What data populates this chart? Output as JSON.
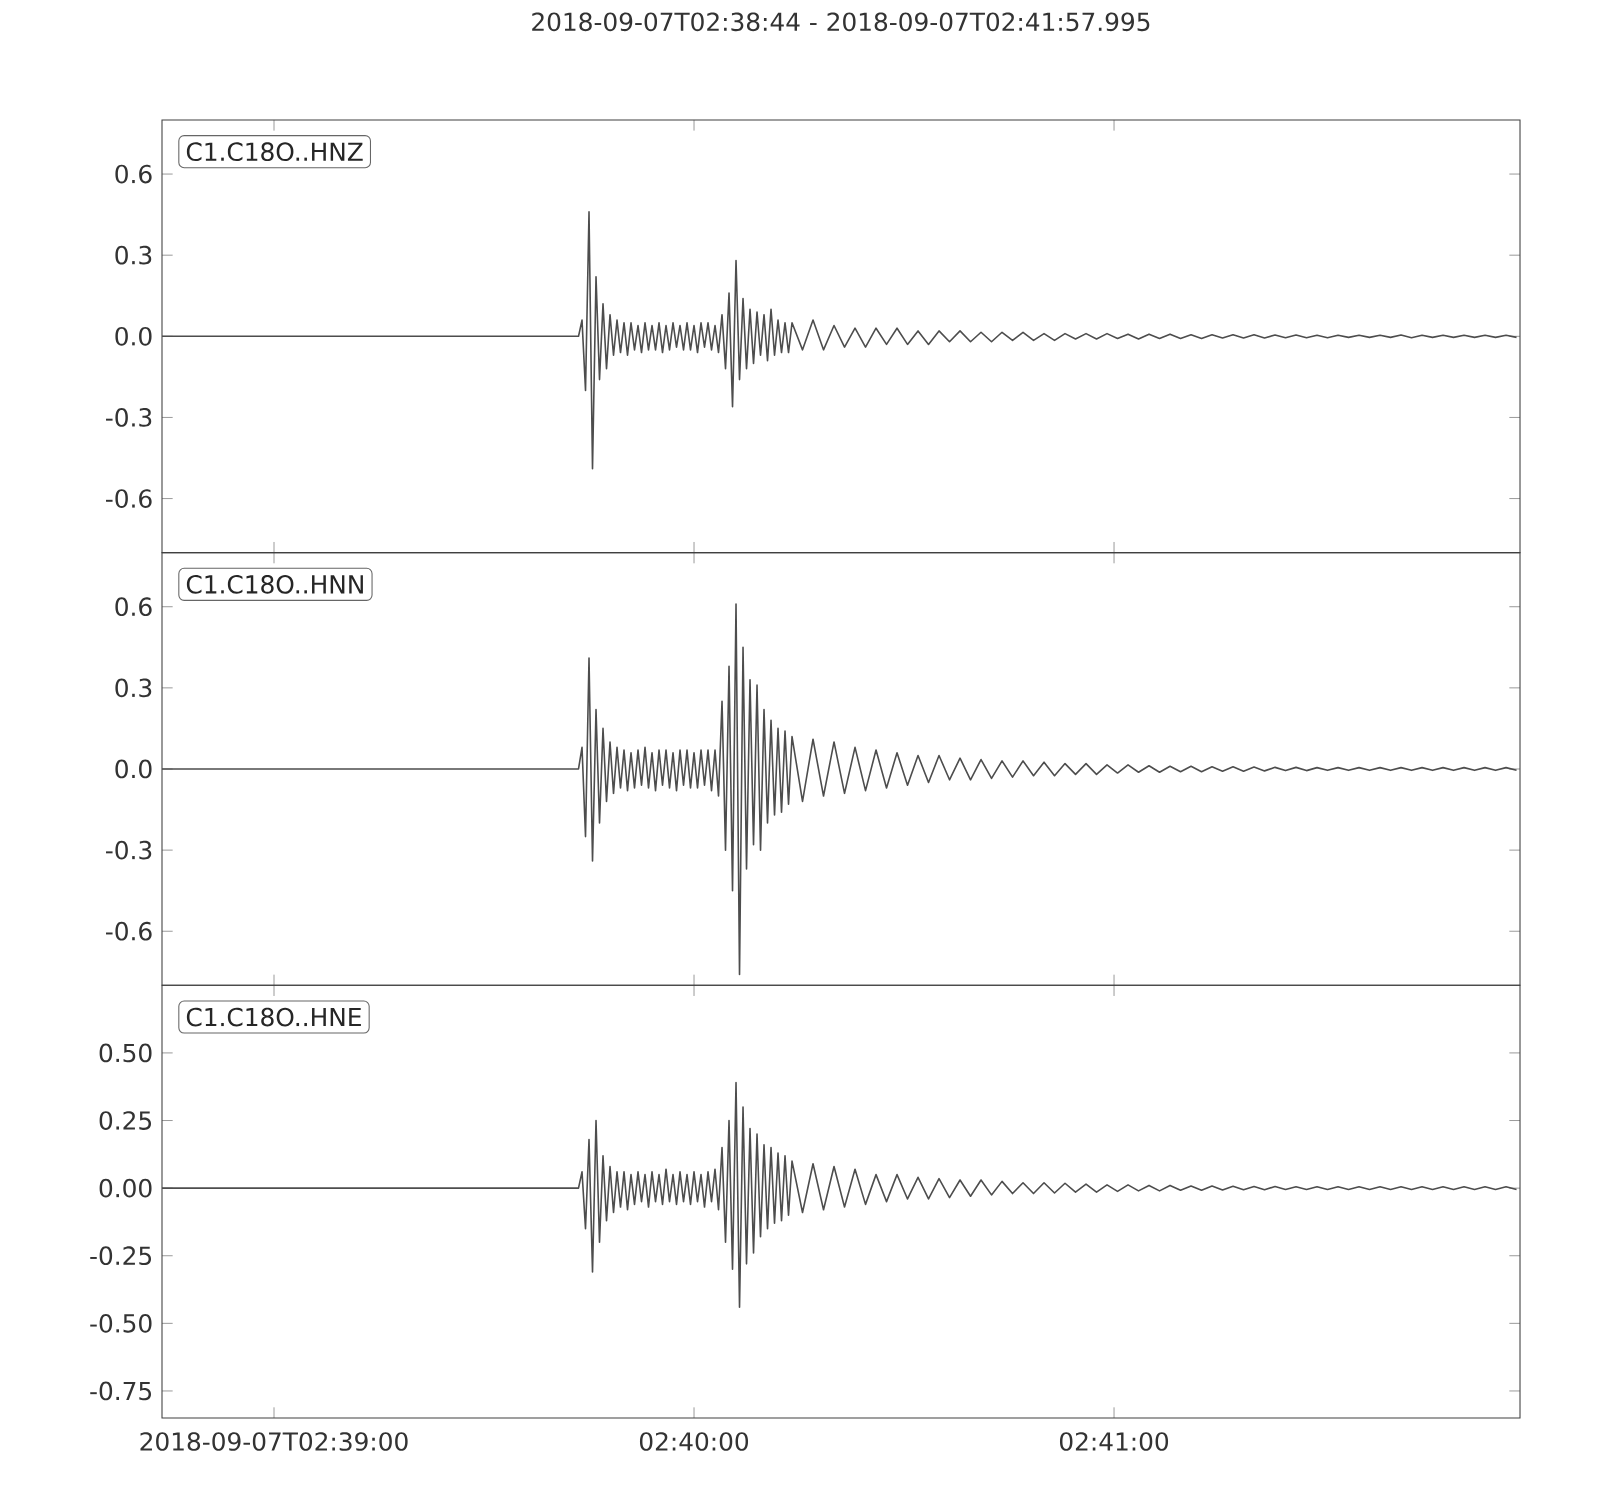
{
  "chart_data": [
    {
      "type": "line",
      "title": "2018-09-07T02:38:44  -  2018-09-07T02:41:57.995",
      "annotations": [
        "C1.C18O..HNZ"
      ],
      "x": [
        "2018-09-07T02:38:44",
        "2018-09-07T02:39:43.5",
        "2018-09-07T02:39:44",
        "2018-09-07T02:39:44.5",
        "2018-09-07T02:39:45",
        "2018-09-07T02:39:45.5",
        "2018-09-07T02:39:46",
        "2018-09-07T02:39:46.5",
        "2018-09-07T02:39:47",
        "2018-09-07T02:39:47.5",
        "2018-09-07T02:39:48",
        "2018-09-07T02:39:48.5",
        "2018-09-07T02:39:49",
        "2018-09-07T02:39:49.5",
        "2018-09-07T02:39:50",
        "2018-09-07T02:39:50.5",
        "2018-09-07T02:39:51",
        "2018-09-07T02:39:51.5",
        "2018-09-07T02:39:52",
        "2018-09-07T02:39:52.5",
        "2018-09-07T02:39:53",
        "2018-09-07T02:39:53.5",
        "2018-09-07T02:39:54",
        "2018-09-07T02:39:54.5",
        "2018-09-07T02:39:55",
        "2018-09-07T02:39:55.5",
        "2018-09-07T02:39:56",
        "2018-09-07T02:39:56.5",
        "2018-09-07T02:39:57",
        "2018-09-07T02:39:57.5",
        "2018-09-07T02:39:58",
        "2018-09-07T02:39:58.5",
        "2018-09-07T02:39:59",
        "2018-09-07T02:39:59.5",
        "2018-09-07T02:40:00",
        "2018-09-07T02:40:00.5",
        "2018-09-07T02:40:01",
        "2018-09-07T02:40:01.5",
        "2018-09-07T02:40:02",
        "2018-09-07T02:40:02.5",
        "2018-09-07T02:40:03",
        "2018-09-07T02:40:03.5",
        "2018-09-07T02:40:04",
        "2018-09-07T02:40:04.5",
        "2018-09-07T02:40:05",
        "2018-09-07T02:40:05.5",
        "2018-09-07T02:40:06",
        "2018-09-07T02:40:06.5",
        "2018-09-07T02:40:07",
        "2018-09-07T02:40:07.5",
        "2018-09-07T02:40:08",
        "2018-09-07T02:40:08.5",
        "2018-09-07T02:40:09",
        "2018-09-07T02:40:09.5",
        "2018-09-07T02:40:10",
        "2018-09-07T02:40:10.5",
        "2018-09-07T02:40:11",
        "2018-09-07T02:40:11.5",
        "2018-09-07T02:40:12",
        "2018-09-07T02:40:12.5",
        "2018-09-07T02:40:13",
        "2018-09-07T02:40:13.5",
        "2018-09-07T02:40:14",
        "2018-09-07T02:40:15.5",
        "2018-09-07T02:40:17",
        "2018-09-07T02:40:18.5",
        "2018-09-07T02:40:20",
        "2018-09-07T02:40:21.5",
        "2018-09-07T02:40:23",
        "2018-09-07T02:40:24.5",
        "2018-09-07T02:40:26",
        "2018-09-07T02:40:27.5",
        "2018-09-07T02:40:29",
        "2018-09-07T02:40:30.5",
        "2018-09-07T02:40:32",
        "2018-09-07T02:40:33.5",
        "2018-09-07T02:40:35",
        "2018-09-07T02:40:36.5",
        "2018-09-07T02:40:38",
        "2018-09-07T02:40:39.5",
        "2018-09-07T02:40:41",
        "2018-09-07T02:40:42.5",
        "2018-09-07T02:40:44",
        "2018-09-07T02:40:45.5",
        "2018-09-07T02:40:47",
        "2018-09-07T02:40:48.5",
        "2018-09-07T02:40:50",
        "2018-09-07T02:40:51.5",
        "2018-09-07T02:40:53",
        "2018-09-07T02:40:54.5",
        "2018-09-07T02:40:56",
        "2018-09-07T02:40:57.5",
        "2018-09-07T02:40:59",
        "2018-09-07T02:41:00.5",
        "2018-09-07T02:41:02",
        "2018-09-07T02:41:03.5",
        "2018-09-07T02:41:05",
        "2018-09-07T02:41:06.5",
        "2018-09-07T02:41:08",
        "2018-09-07T02:41:09.5",
        "2018-09-07T02:41:11",
        "2018-09-07T02:41:12.5",
        "2018-09-07T02:41:14",
        "2018-09-07T02:41:15.5",
        "2018-09-07T02:41:17",
        "2018-09-07T02:41:18.5",
        "2018-09-07T02:41:20",
        "2018-09-07T02:41:21.5",
        "2018-09-07T02:41:23",
        "2018-09-07T02:41:24.5",
        "2018-09-07T02:41:26",
        "2018-09-07T02:41:27.5",
        "2018-09-07T02:41:29",
        "2018-09-07T02:41:30.5",
        "2018-09-07T02:41:32",
        "2018-09-07T02:41:33.5",
        "2018-09-07T02:41:35",
        "2018-09-07T02:41:36.5",
        "2018-09-07T02:41:38",
        "2018-09-07T02:41:39.5",
        "2018-09-07T02:41:41",
        "2018-09-07T02:41:42.5",
        "2018-09-07T02:41:44",
        "2018-09-07T02:41:45.5",
        "2018-09-07T02:41:47",
        "2018-09-07T02:41:48.5",
        "2018-09-07T02:41:50",
        "2018-09-07T02:41:51.5",
        "2018-09-07T02:41:53",
        "2018-09-07T02:41:54.5",
        "2018-09-07T02:41:56",
        "2018-09-07T02:41:57.5"
      ],
      "xlim": [
        "2018-09-07T02:38:44",
        "2018-09-07T02:41:57.995"
      ],
      "xticks": [
        {
          "value": "2018-09-07T02:39:00",
          "label": null
        },
        {
          "value": "2018-09-07T02:40:00",
          "label": null
        },
        {
          "value": "2018-09-07T02:41:00",
          "label": null
        }
      ],
      "ylim": [
        -0.8,
        0.8
      ],
      "yticks": [
        {
          "value": -0.6,
          "label": "-0.6"
        },
        {
          "value": -0.3,
          "label": "-0.3"
        },
        {
          "value": 0,
          "label": "0.0"
        },
        {
          "value": 0.3,
          "label": "0.3"
        },
        {
          "value": 0.6,
          "label": "0.6"
        }
      ],
      "tick_labels": "y",
      "series": [
        {
          "color": "#4d4d4d",
          "values": [
            0,
            0,
            0.06,
            -0.2,
            0.46,
            -0.49,
            0.22,
            -0.16,
            0.12,
            -0.12,
            0.08,
            -0.07,
            0.06,
            -0.06,
            0.05,
            -0.07,
            0.05,
            -0.05,
            0.04,
            -0.06,
            0.05,
            -0.05,
            0.04,
            -0.05,
            0.05,
            -0.06,
            0.04,
            -0.05,
            0.05,
            -0.04,
            0.04,
            -0.05,
            0.05,
            -0.05,
            0.04,
            -0.06,
            0.05,
            -0.04,
            0.05,
            -0.05,
            0.04,
            -0.06,
            0.08,
            -0.12,
            0.16,
            -0.26,
            0.28,
            -0.16,
            0.14,
            -0.12,
            0.1,
            -0.1,
            0.09,
            -0.07,
            0.08,
            -0.09,
            0.1,
            -0.07,
            0.06,
            -0.06,
            0.05,
            -0.06,
            0.05,
            -0.05,
            0.06,
            -0.05,
            0.04,
            -0.04,
            0.03,
            -0.04,
            0.03,
            -0.03,
            0.03,
            -0.03,
            0.02,
            -0.03,
            0.02,
            -0.02,
            0.02,
            -0.02,
            0.015,
            -0.02,
            0.015,
            -0.015,
            0.015,
            -0.015,
            0.01,
            -0.015,
            0.01,
            -0.01,
            0.01,
            -0.01,
            0.01,
            -0.008,
            0.008,
            -0.01,
            0.008,
            -0.008,
            0.008,
            -0.008,
            0.006,
            -0.008,
            0.006,
            -0.006,
            0.006,
            -0.006,
            0.006,
            -0.006,
            0.005,
            -0.005,
            0.005,
            -0.005,
            0.004,
            -0.005,
            0.004,
            -0.004,
            0.004,
            -0.004,
            0.004,
            -0.004,
            0.005,
            -0.005,
            0.004,
            -0.004,
            0.004,
            -0.004,
            0.004,
            -0.004,
            0.004,
            -0.004,
            0.004,
            -0.004
          ]
        }
      ]
    },
    {
      "type": "line",
      "annotations": [
        "C1.C18O..HNN"
      ],
      "x": [
        "2018-09-07T02:38:44",
        "2018-09-07T02:39:43.5",
        "2018-09-07T02:39:44",
        "2018-09-07T02:39:44.5",
        "2018-09-07T02:39:45",
        "2018-09-07T02:39:45.5",
        "2018-09-07T02:39:46",
        "2018-09-07T02:39:46.5",
        "2018-09-07T02:39:47",
        "2018-09-07T02:39:47.5",
        "2018-09-07T02:39:48",
        "2018-09-07T02:39:48.5",
        "2018-09-07T02:39:49",
        "2018-09-07T02:39:49.5",
        "2018-09-07T02:39:50",
        "2018-09-07T02:39:50.5",
        "2018-09-07T02:39:51",
        "2018-09-07T02:39:51.5",
        "2018-09-07T02:39:52",
        "2018-09-07T02:39:52.5",
        "2018-09-07T02:39:53",
        "2018-09-07T02:39:53.5",
        "2018-09-07T02:39:54",
        "2018-09-07T02:39:54.5",
        "2018-09-07T02:39:55",
        "2018-09-07T02:39:55.5",
        "2018-09-07T02:39:56",
        "2018-09-07T02:39:56.5",
        "2018-09-07T02:39:57",
        "2018-09-07T02:39:57.5",
        "2018-09-07T02:39:58",
        "2018-09-07T02:39:58.5",
        "2018-09-07T02:39:59",
        "2018-09-07T02:39:59.5",
        "2018-09-07T02:40:00",
        "2018-09-07T02:40:00.5",
        "2018-09-07T02:40:01",
        "2018-09-07T02:40:01.5",
        "2018-09-07T02:40:02",
        "2018-09-07T02:40:02.5",
        "2018-09-07T02:40:03",
        "2018-09-07T02:40:03.5",
        "2018-09-07T02:40:04",
        "2018-09-07T02:40:04.5",
        "2018-09-07T02:40:05",
        "2018-09-07T02:40:05.5",
        "2018-09-07T02:40:06",
        "2018-09-07T02:40:06.5",
        "2018-09-07T02:40:07",
        "2018-09-07T02:40:07.5",
        "2018-09-07T02:40:08",
        "2018-09-07T02:40:08.5",
        "2018-09-07T02:40:09",
        "2018-09-07T02:40:09.5",
        "2018-09-07T02:40:10",
        "2018-09-07T02:40:10.5",
        "2018-09-07T02:40:11",
        "2018-09-07T02:40:11.5",
        "2018-09-07T02:40:12",
        "2018-09-07T02:40:12.5",
        "2018-09-07T02:40:13",
        "2018-09-07T02:40:13.5",
        "2018-09-07T02:40:14",
        "2018-09-07T02:40:15.5",
        "2018-09-07T02:40:17",
        "2018-09-07T02:40:18.5",
        "2018-09-07T02:40:20",
        "2018-09-07T02:40:21.5",
        "2018-09-07T02:40:23",
        "2018-09-07T02:40:24.5",
        "2018-09-07T02:40:26",
        "2018-09-07T02:40:27.5",
        "2018-09-07T02:40:29",
        "2018-09-07T02:40:30.5",
        "2018-09-07T02:40:32",
        "2018-09-07T02:40:33.5",
        "2018-09-07T02:40:35",
        "2018-09-07T02:40:36.5",
        "2018-09-07T02:40:38",
        "2018-09-07T02:40:39.5",
        "2018-09-07T02:40:41",
        "2018-09-07T02:40:42.5",
        "2018-09-07T02:40:44",
        "2018-09-07T02:40:45.5",
        "2018-09-07T02:40:47",
        "2018-09-07T02:40:48.5",
        "2018-09-07T02:40:50",
        "2018-09-07T02:40:51.5",
        "2018-09-07T02:40:53",
        "2018-09-07T02:40:54.5",
        "2018-09-07T02:40:56",
        "2018-09-07T02:40:57.5",
        "2018-09-07T02:40:59",
        "2018-09-07T02:41:00.5",
        "2018-09-07T02:41:02",
        "2018-09-07T02:41:03.5",
        "2018-09-07T02:41:05",
        "2018-09-07T02:41:06.5",
        "2018-09-07T02:41:08",
        "2018-09-07T02:41:09.5",
        "2018-09-07T02:41:11",
        "2018-09-07T02:41:12.5",
        "2018-09-07T02:41:14",
        "2018-09-07T02:41:15.5",
        "2018-09-07T02:41:17",
        "2018-09-07T02:41:18.5",
        "2018-09-07T02:41:20",
        "2018-09-07T02:41:21.5",
        "2018-09-07T02:41:23",
        "2018-09-07T02:41:24.5",
        "2018-09-07T02:41:26",
        "2018-09-07T02:41:27.5",
        "2018-09-07T02:41:29",
        "2018-09-07T02:41:30.5",
        "2018-09-07T02:41:32",
        "2018-09-07T02:41:33.5",
        "2018-09-07T02:41:35",
        "2018-09-07T02:41:36.5",
        "2018-09-07T02:41:38",
        "2018-09-07T02:41:39.5",
        "2018-09-07T02:41:41",
        "2018-09-07T02:41:42.5",
        "2018-09-07T02:41:44",
        "2018-09-07T02:41:45.5",
        "2018-09-07T02:41:47",
        "2018-09-07T02:41:48.5",
        "2018-09-07T02:41:50",
        "2018-09-07T02:41:51.5",
        "2018-09-07T02:41:53",
        "2018-09-07T02:41:54.5",
        "2018-09-07T02:41:56",
        "2018-09-07T02:41:57.5"
      ],
      "xlim": [
        "2018-09-07T02:38:44",
        "2018-09-07T02:41:57.995"
      ],
      "xticks": [
        {
          "value": "2018-09-07T02:39:00",
          "label": null
        },
        {
          "value": "2018-09-07T02:40:00",
          "label": null
        },
        {
          "value": "2018-09-07T02:41:00",
          "label": null
        }
      ],
      "ylim": [
        -0.8,
        0.8
      ],
      "yticks": [
        {
          "value": -0.6,
          "label": "-0.6"
        },
        {
          "value": -0.3,
          "label": "-0.3"
        },
        {
          "value": 0,
          "label": "0.0"
        },
        {
          "value": 0.3,
          "label": "0.3"
        },
        {
          "value": 0.6,
          "label": "0.6"
        }
      ],
      "tick_labels": "y",
      "series": [
        {
          "color": "#4d4d4d",
          "values": [
            0,
            0,
            0.08,
            -0.25,
            0.41,
            -0.34,
            0.22,
            -0.2,
            0.15,
            -0.12,
            0.1,
            -0.09,
            0.08,
            -0.07,
            0.07,
            -0.08,
            0.06,
            -0.07,
            0.07,
            -0.06,
            0.08,
            -0.07,
            0.06,
            -0.08,
            0.07,
            -0.06,
            0.07,
            -0.07,
            0.06,
            -0.08,
            0.07,
            -0.06,
            0.07,
            -0.07,
            0.06,
            -0.07,
            0.07,
            -0.06,
            0.07,
            -0.08,
            0.07,
            -0.1,
            0.25,
            -0.3,
            0.38,
            -0.45,
            0.61,
            -0.76,
            0.45,
            -0.37,
            0.33,
            -0.28,
            0.31,
            -0.3,
            0.22,
            -0.2,
            0.18,
            -0.17,
            0.15,
            -0.16,
            0.14,
            -0.13,
            0.12,
            -0.12,
            0.11,
            -0.1,
            0.1,
            -0.09,
            0.08,
            -0.08,
            0.07,
            -0.07,
            0.06,
            -0.06,
            0.05,
            -0.05,
            0.05,
            -0.04,
            0.04,
            -0.04,
            0.035,
            -0.035,
            0.03,
            -0.03,
            0.03,
            -0.025,
            0.025,
            -0.025,
            0.02,
            -0.02,
            0.02,
            -0.02,
            0.015,
            -0.015,
            0.015,
            -0.012,
            0.012,
            -0.012,
            0.01,
            -0.01,
            0.01,
            -0.01,
            0.008,
            -0.008,
            0.008,
            -0.008,
            0.007,
            -0.007,
            0.006,
            -0.006,
            0.006,
            -0.006,
            0.005,
            -0.005,
            0.005,
            -0.005,
            0.005,
            -0.005,
            0.005,
            -0.005,
            0.005,
            -0.005,
            0.005,
            -0.005,
            0.005,
            -0.005,
            0.005,
            -0.005,
            0.005,
            -0.005,
            0.005,
            -0.005
          ]
        }
      ]
    },
    {
      "type": "line",
      "annotations": [
        "C1.C18O..HNE"
      ],
      "x": [
        "2018-09-07T02:38:44",
        "2018-09-07T02:39:43.5",
        "2018-09-07T02:39:44",
        "2018-09-07T02:39:44.5",
        "2018-09-07T02:39:45",
        "2018-09-07T02:39:45.5",
        "2018-09-07T02:39:46",
        "2018-09-07T02:39:46.5",
        "2018-09-07T02:39:47",
        "2018-09-07T02:39:47.5",
        "2018-09-07T02:39:48",
        "2018-09-07T02:39:48.5",
        "2018-09-07T02:39:49",
        "2018-09-07T02:39:49.5",
        "2018-09-07T02:39:50",
        "2018-09-07T02:39:50.5",
        "2018-09-07T02:39:51",
        "2018-09-07T02:39:51.5",
        "2018-09-07T02:39:52",
        "2018-09-07T02:39:52.5",
        "2018-09-07T02:39:53",
        "2018-09-07T02:39:53.5",
        "2018-09-07T02:39:54",
        "2018-09-07T02:39:54.5",
        "2018-09-07T02:39:55",
        "2018-09-07T02:39:55.5",
        "2018-09-07T02:39:56",
        "2018-09-07T02:39:56.5",
        "2018-09-07T02:39:57",
        "2018-09-07T02:39:57.5",
        "2018-09-07T02:39:58",
        "2018-09-07T02:39:58.5",
        "2018-09-07T02:39:59",
        "2018-09-07T02:39:59.5",
        "2018-09-07T02:40:00",
        "2018-09-07T02:40:00.5",
        "2018-09-07T02:40:01",
        "2018-09-07T02:40:01.5",
        "2018-09-07T02:40:02",
        "2018-09-07T02:40:02.5",
        "2018-09-07T02:40:03",
        "2018-09-07T02:40:03.5",
        "2018-09-07T02:40:04",
        "2018-09-07T02:40:04.5",
        "2018-09-07T02:40:05",
        "2018-09-07T02:40:05.5",
        "2018-09-07T02:40:06",
        "2018-09-07T02:40:06.5",
        "2018-09-07T02:40:07",
        "2018-09-07T02:40:07.5",
        "2018-09-07T02:40:08",
        "2018-09-07T02:40:08.5",
        "2018-09-07T02:40:09",
        "2018-09-07T02:40:09.5",
        "2018-09-07T02:40:10",
        "2018-09-07T02:40:10.5",
        "2018-09-07T02:40:11",
        "2018-09-07T02:40:11.5",
        "2018-09-07T02:40:12",
        "2018-09-07T02:40:12.5",
        "2018-09-07T02:40:13",
        "2018-09-07T02:40:13.5",
        "2018-09-07T02:40:14",
        "2018-09-07T02:40:15.5",
        "2018-09-07T02:40:17",
        "2018-09-07T02:40:18.5",
        "2018-09-07T02:40:20",
        "2018-09-07T02:40:21.5",
        "2018-09-07T02:40:23",
        "2018-09-07T02:40:24.5",
        "2018-09-07T02:40:26",
        "2018-09-07T02:40:27.5",
        "2018-09-07T02:40:29",
        "2018-09-07T02:40:30.5",
        "2018-09-07T02:40:32",
        "2018-09-07T02:40:33.5",
        "2018-09-07T02:40:35",
        "2018-09-07T02:40:36.5",
        "2018-09-07T02:40:38",
        "2018-09-07T02:40:39.5",
        "2018-09-07T02:40:41",
        "2018-09-07T02:40:42.5",
        "2018-09-07T02:40:44",
        "2018-09-07T02:40:45.5",
        "2018-09-07T02:40:47",
        "2018-09-07T02:40:48.5",
        "2018-09-07T02:40:50",
        "2018-09-07T02:40:51.5",
        "2018-09-07T02:40:53",
        "2018-09-07T02:40:54.5",
        "2018-09-07T02:40:56",
        "2018-09-07T02:40:57.5",
        "2018-09-07T02:40:59",
        "2018-09-07T02:41:00.5",
        "2018-09-07T02:41:02",
        "2018-09-07T02:41:03.5",
        "2018-09-07T02:41:05",
        "2018-09-07T02:41:06.5",
        "2018-09-07T02:41:08",
        "2018-09-07T02:41:09.5",
        "2018-09-07T02:41:11",
        "2018-09-07T02:41:12.5",
        "2018-09-07T02:41:14",
        "2018-09-07T02:41:15.5",
        "2018-09-07T02:41:17",
        "2018-09-07T02:41:18.5",
        "2018-09-07T02:41:20",
        "2018-09-07T02:41:21.5",
        "2018-09-07T02:41:23",
        "2018-09-07T02:41:24.5",
        "2018-09-07T02:41:26",
        "2018-09-07T02:41:27.5",
        "2018-09-07T02:41:29",
        "2018-09-07T02:41:30.5",
        "2018-09-07T02:41:32",
        "2018-09-07T02:41:33.5",
        "2018-09-07T02:41:35",
        "2018-09-07T02:41:36.5",
        "2018-09-07T02:41:38",
        "2018-09-07T02:41:39.5",
        "2018-09-07T02:41:41",
        "2018-09-07T02:41:42.5",
        "2018-09-07T02:41:44",
        "2018-09-07T02:41:45.5",
        "2018-09-07T02:41:47",
        "2018-09-07T02:41:48.5",
        "2018-09-07T02:41:50",
        "2018-09-07T02:41:51.5",
        "2018-09-07T02:41:53",
        "2018-09-07T02:41:54.5",
        "2018-09-07T02:41:56",
        "2018-09-07T02:41:57.5"
      ],
      "xlim": [
        "2018-09-07T02:38:44",
        "2018-09-07T02:41:57.995"
      ],
      "xticks": [
        {
          "value": "2018-09-07T02:39:00",
          "label": "2018-09-07T02:39:00"
        },
        {
          "value": "2018-09-07T02:40:00",
          "label": "02:40:00"
        },
        {
          "value": "2018-09-07T02:41:00",
          "label": "02:41:00"
        }
      ],
      "ylim": [
        -0.85,
        0.75
      ],
      "yticks": [
        {
          "value": -0.75,
          "label": "-0.75"
        },
        {
          "value": -0.5,
          "label": "-0.50"
        },
        {
          "value": -0.25,
          "label": "-0.25"
        },
        {
          "value": 0,
          "label": "0.00"
        },
        {
          "value": 0.25,
          "label": "0.25"
        },
        {
          "value": 0.5,
          "label": "0.50"
        }
      ],
      "series": [
        {
          "color": "#4d4d4d",
          "values": [
            0,
            0,
            0.06,
            -0.15,
            0.18,
            -0.31,
            0.25,
            -0.2,
            0.12,
            -0.12,
            0.08,
            -0.09,
            0.06,
            -0.07,
            0.06,
            -0.08,
            0.05,
            -0.06,
            0.06,
            -0.05,
            0.05,
            -0.07,
            0.06,
            -0.05,
            0.05,
            -0.06,
            0.07,
            -0.05,
            0.05,
            -0.06,
            0.06,
            -0.05,
            0.05,
            -0.06,
            0.06,
            -0.05,
            0.05,
            -0.07,
            0.06,
            -0.05,
            0.07,
            -0.08,
            0.15,
            -0.2,
            0.25,
            -0.3,
            0.39,
            -0.44,
            0.3,
            -0.28,
            0.22,
            -0.24,
            0.2,
            -0.18,
            0.16,
            -0.15,
            0.15,
            -0.13,
            0.13,
            -0.12,
            0.12,
            -0.1,
            0.1,
            -0.09,
            0.09,
            -0.08,
            0.08,
            -0.07,
            0.07,
            -0.06,
            0.05,
            -0.05,
            0.05,
            -0.04,
            0.04,
            -0.04,
            0.035,
            -0.035,
            0.03,
            -0.03,
            0.03,
            -0.025,
            0.025,
            -0.02,
            0.02,
            -0.02,
            0.02,
            -0.018,
            0.018,
            -0.015,
            0.015,
            -0.015,
            0.012,
            -0.012,
            0.012,
            -0.01,
            0.01,
            -0.01,
            0.01,
            -0.008,
            0.008,
            -0.008,
            0.008,
            -0.007,
            0.007,
            -0.006,
            0.006,
            -0.006,
            0.006,
            -0.005,
            0.005,
            -0.005,
            0.005,
            -0.005,
            0.005,
            -0.005,
            0.005,
            -0.005,
            0.005,
            -0.005,
            0.005,
            -0.005,
            0.005,
            -0.005,
            0.005,
            -0.005,
            0.005,
            -0.005,
            0.005,
            -0.005,
            0.005,
            -0.005
          ]
        }
      ]
    }
  ]
}
